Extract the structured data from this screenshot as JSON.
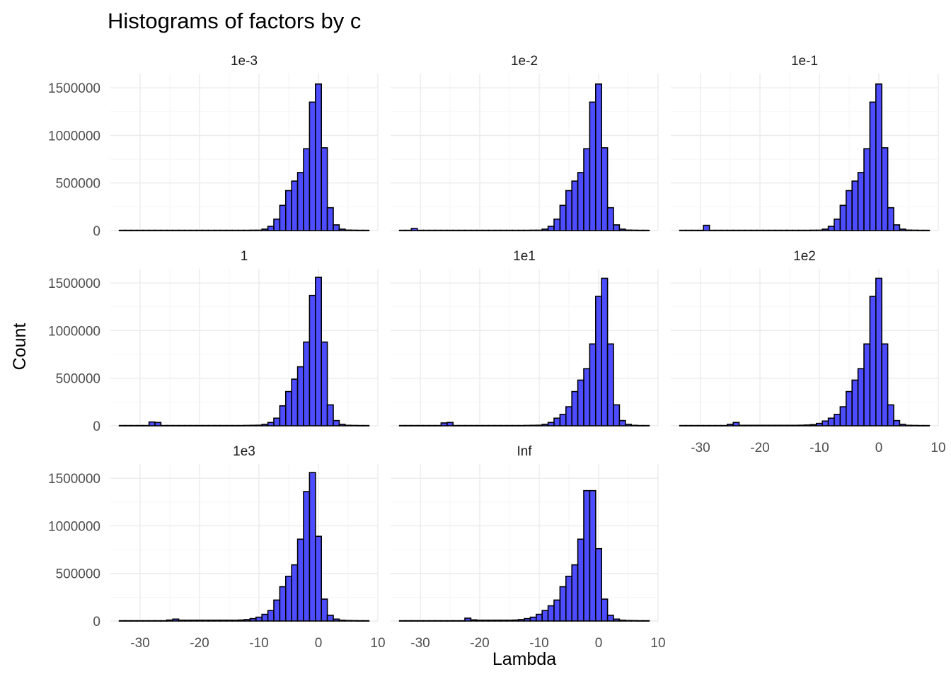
{
  "chart_data": {
    "type": "bar",
    "title": "Histograms of factors by c",
    "xlabel": "Lambda",
    "ylabel": "Count",
    "xlim": [
      -35,
      10
    ],
    "ylim": [
      0,
      1650000
    ],
    "x_ticks": [
      -30,
      -20,
      -10,
      0,
      10
    ],
    "x_tick_labels": [
      "-30",
      "-20",
      "-10",
      "0",
      "10"
    ],
    "y_ticks": [
      0,
      500000,
      1000000,
      1500000
    ],
    "y_tick_labels": [
      "0",
      "500000",
      "1000000",
      "1500000"
    ],
    "grid": true,
    "legend": "none",
    "bin_width": 1,
    "bar_fill": "#4d4dff",
    "bar_outline": "#000000",
    "bin_centers": [
      -33,
      -32,
      -31,
      -30,
      -29,
      -28,
      -27,
      -26,
      -25,
      -24,
      -23,
      -22,
      -21,
      -20,
      -19,
      -18,
      -17,
      -16,
      -15,
      -14,
      -13,
      -12,
      -11,
      -10,
      -9,
      -8,
      -7,
      -6,
      -5,
      -4,
      -3,
      -2,
      -1,
      0,
      1,
      2,
      3,
      4,
      5,
      6,
      7,
      8
    ],
    "panels": [
      {
        "label": "1e-3",
        "counts": [
          3000,
          3000,
          3000,
          3000,
          3000,
          3000,
          3000,
          3000,
          3000,
          3000,
          3000,
          3000,
          3000,
          3000,
          3000,
          3000,
          3000,
          3000,
          3000,
          3000,
          3000,
          3000,
          4000,
          4000,
          15000,
          45000,
          120000,
          265000,
          420000,
          520000,
          610000,
          860000,
          1350000,
          1540000,
          870000,
          240000,
          60000,
          15000,
          5000,
          4000,
          3000,
          3000
        ]
      },
      {
        "label": "1e-2",
        "counts": [
          3000,
          3000,
          22000,
          3000,
          3000,
          3000,
          3000,
          3000,
          3000,
          3000,
          3000,
          3000,
          3000,
          3000,
          3000,
          3000,
          3000,
          3000,
          3000,
          3000,
          3000,
          3000,
          4000,
          4000,
          15000,
          45000,
          120000,
          265000,
          420000,
          520000,
          610000,
          860000,
          1350000,
          1540000,
          870000,
          240000,
          60000,
          15000,
          5000,
          4000,
          3000,
          3000
        ]
      },
      {
        "label": "1e-1",
        "counts": [
          3000,
          3000,
          3000,
          3000,
          55000,
          3000,
          3000,
          3000,
          3000,
          3000,
          3000,
          3000,
          3000,
          3000,
          3000,
          3000,
          3000,
          3000,
          3000,
          3000,
          3000,
          3000,
          4000,
          4000,
          15000,
          45000,
          120000,
          265000,
          420000,
          520000,
          610000,
          860000,
          1350000,
          1540000,
          870000,
          240000,
          60000,
          15000,
          5000,
          4000,
          3000,
          3000
        ]
      },
      {
        "label": "1",
        "counts": [
          3000,
          3000,
          3000,
          3000,
          3000,
          40000,
          35000,
          3000,
          3000,
          3000,
          3000,
          3000,
          3000,
          3000,
          3000,
          3000,
          3000,
          3000,
          3000,
          3000,
          3000,
          4000,
          5000,
          6000,
          15000,
          35000,
          80000,
          210000,
          360000,
          490000,
          620000,
          880000,
          1370000,
          1560000,
          880000,
          220000,
          55000,
          15000,
          5000,
          4000,
          3000,
          3000
        ]
      },
      {
        "label": "1e1",
        "counts": [
          3000,
          3000,
          3000,
          3000,
          3000,
          3000,
          3000,
          30000,
          35000,
          3000,
          3000,
          3000,
          3000,
          3000,
          3000,
          3000,
          3000,
          3000,
          3000,
          3000,
          3000,
          4000,
          5000,
          6000,
          15000,
          35000,
          80000,
          120000,
          200000,
          360000,
          480000,
          600000,
          860000,
          1360000,
          1550000,
          860000,
          220000,
          55000,
          15000,
          5000,
          3000,
          3000
        ]
      },
      {
        "label": "1e2",
        "counts": [
          3000,
          3000,
          3000,
          3000,
          3000,
          3000,
          3000,
          3000,
          15000,
          35000,
          5000,
          5000,
          5000,
          5000,
          5000,
          5000,
          5000,
          5000,
          5000,
          5000,
          6000,
          8000,
          12000,
          25000,
          50000,
          80000,
          120000,
          200000,
          360000,
          480000,
          600000,
          860000,
          1360000,
          1550000,
          860000,
          220000,
          55000,
          15000,
          5000,
          4000,
          3000,
          3000
        ]
      },
      {
        "label": "1e3",
        "counts": [
          3000,
          3000,
          3000,
          3000,
          3000,
          3000,
          3000,
          3000,
          10000,
          20000,
          8000,
          8000,
          8000,
          8000,
          8000,
          8000,
          8000,
          8000,
          8000,
          8000,
          10000,
          15000,
          25000,
          40000,
          70000,
          110000,
          220000,
          360000,
          470000,
          590000,
          860000,
          1360000,
          1560000,
          890000,
          230000,
          60000,
          20000,
          8000,
          5000,
          4000,
          3000,
          3000
        ]
      },
      {
        "label": "Inf",
        "counts": [
          3000,
          3000,
          3000,
          3000,
          3000,
          3000,
          3000,
          3000,
          3000,
          3000,
          3000,
          30000,
          12000,
          8000,
          8000,
          8000,
          8000,
          8000,
          8000,
          10000,
          15000,
          25000,
          40000,
          70000,
          110000,
          160000,
          220000,
          360000,
          470000,
          590000,
          860000,
          1370000,
          1370000,
          760000,
          230000,
          60000,
          20000,
          8000,
          5000,
          4000,
          3000,
          3000
        ]
      }
    ]
  }
}
